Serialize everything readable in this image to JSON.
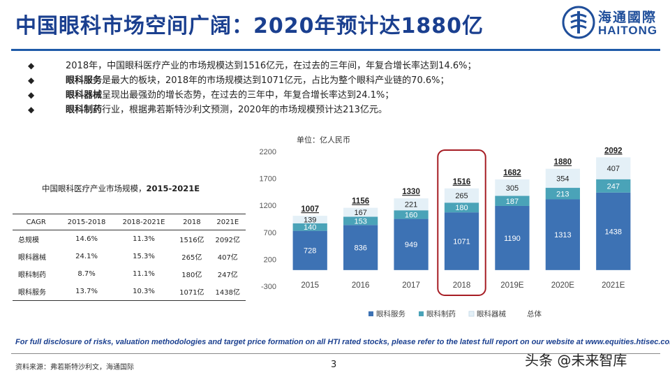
{
  "header": {
    "title": "中国眼科市场空间广阔：2020年预计达1880亿",
    "logo_cn": "海通國際",
    "logo_en": "HAITONG"
  },
  "bullets": [
    {
      "bold": "",
      "text": "2018年，中国眼科医疗产业的市场规模达到1516亿元，在过去的三年间，年复合增长率达到14.6%；"
    },
    {
      "bold": "眼科服务",
      "text": "是最大的板块，2018年的市场规模达到1071亿元，占比为整个眼科产业链的70.6%；"
    },
    {
      "bold": "眼科器械",
      "text": "呈现出最强劲的增长态势，在过去的三年中，年复合增长率达到24.1%；"
    },
    {
      "bold": "眼科制药",
      "text": "行业，根据弗若斯特沙利文预测，2020年的市场规模预计达213亿元。"
    }
  ],
  "table": {
    "caption_text": "中国眼科医疗产业市场规模，",
    "caption_bold": "2015-2021E",
    "headers": [
      "CAGR",
      "2015-2018",
      "2018-2021E",
      "2018",
      "2021E"
    ],
    "rows": [
      [
        "总规模",
        "14.6%",
        "11.3%",
        "1516亿",
        "2092亿"
      ],
      [
        "眼科器械",
        "24.1%",
        "15.3%",
        "265亿",
        "407亿"
      ],
      [
        "眼科制药",
        "8.7%",
        "11.1%",
        "180亿",
        "247亿"
      ],
      [
        "眼科服务",
        "13.7%",
        "10.3%",
        "1071亿",
        "1438亿"
      ]
    ]
  },
  "chart_data": {
    "type": "bar",
    "stacked": true,
    "unit_label": "单位：亿人民币",
    "categories": [
      "2015",
      "2016",
      "2017",
      "2018",
      "2019E",
      "2020E",
      "2021E"
    ],
    "series": [
      {
        "name": "眼科服务",
        "color": "#3d72b4",
        "values": [
          728,
          836,
          949,
          1071,
          1190,
          1313,
          1438
        ]
      },
      {
        "name": "眼科制药",
        "color": "#4aa3b8",
        "values": [
          140,
          153,
          160,
          180,
          187,
          213,
          247
        ]
      },
      {
        "name": "眼科器械",
        "color": "#e4f0f7",
        "values": [
          139,
          167,
          221,
          265,
          305,
          354,
          407
        ]
      }
    ],
    "totals_series_name": "总体",
    "totals": [
      1007,
      1156,
      1330,
      1516,
      1682,
      1880,
      2092
    ],
    "yticks": [
      -300,
      200,
      700,
      1200,
      1700,
      2200
    ],
    "ylim": [
      -300,
      2200
    ],
    "highlight_category": "2018",
    "highlight_color": "#a61d24"
  },
  "footer": {
    "disclosure": "For full disclosure of risks, valuation methodologies and target price formation on all HTI rated stocks, please refer to the latest full report on our website at www.equities.htisec.com",
    "source": "资料来源：弗若斯特沙利文，海通国际",
    "page": "3",
    "watermark": "头条 @未来智库"
  }
}
